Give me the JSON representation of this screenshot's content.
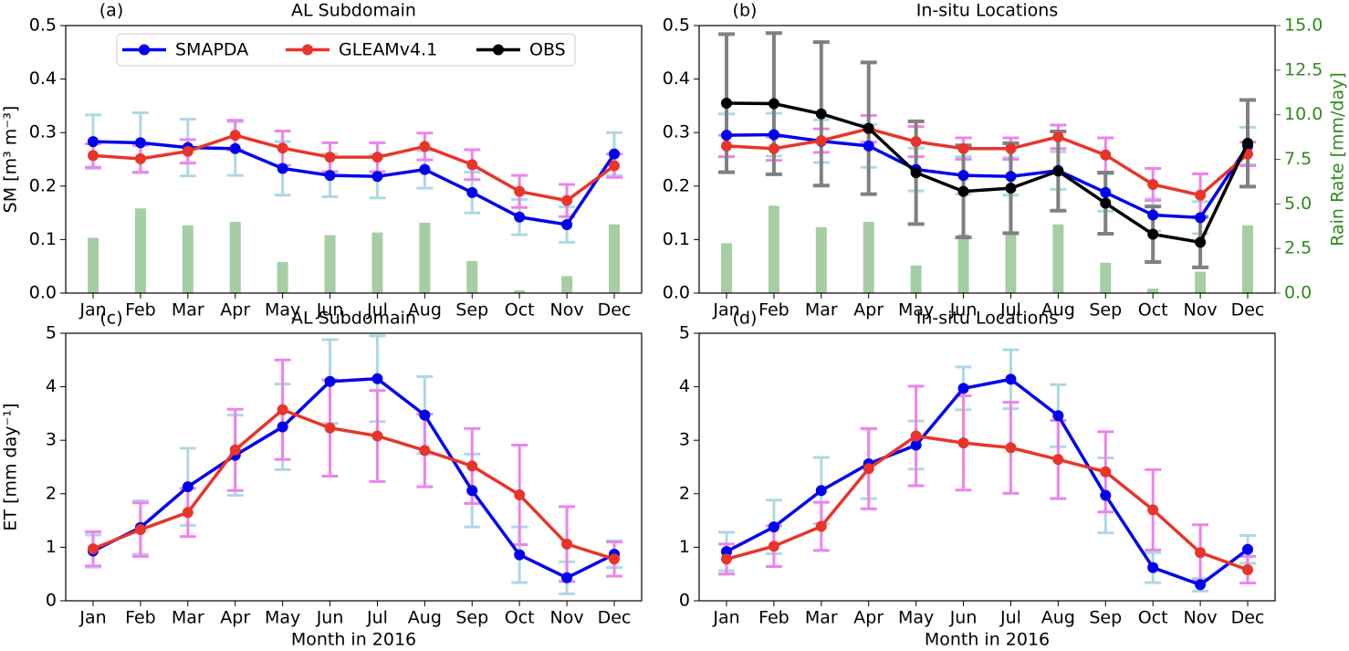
{
  "chart_data": [
    {
      "type": "line",
      "panel_label": "(a)",
      "title": "AL Subdomain",
      "ylabel": "SM [m³ m⁻³]",
      "categories": [
        "Jan",
        "Feb",
        "Mar",
        "Apr",
        "May",
        "Jun",
        "Jul",
        "Aug",
        "Sep",
        "Oct",
        "Nov",
        "Dec"
      ],
      "ylim": [
        0,
        0.5
      ],
      "yticks": [
        {
          "value": 0,
          "label": "0.0"
        },
        0.1,
        0.2,
        0.3,
        0.4,
        0.5
      ],
      "y2lim": [
        0,
        15
      ],
      "legend_entries": [
        {
          "name": "SMAPDA",
          "color": "#0000ee"
        },
        {
          "name": "GLEAMv4.1",
          "color": "#e8352a"
        },
        {
          "name": "OBS",
          "color": "#000000"
        }
      ],
      "rain": {
        "color": "#9cc99a",
        "axis": "y2",
        "values": [
          3.1,
          4.75,
          3.8,
          4.0,
          1.75,
          3.25,
          3.4,
          3.95,
          1.8,
          0.15,
          0.95,
          3.85
        ]
      },
      "series": [
        {
          "color": "#0000ee",
          "error_color": "#add8e6",
          "values": [
            0.283,
            0.281,
            0.272,
            0.27,
            0.233,
            0.22,
            0.218,
            0.231,
            0.188,
            0.142,
            0.128,
            0.26
          ],
          "errors": [
            0.05,
            0.056,
            0.053,
            0.05,
            0.05,
            0.04,
            0.04,
            0.035,
            0.038,
            0.033,
            0.033,
            0.04
          ]
        },
        {
          "color": "#e8352a",
          "error_color": "#ee82ee",
          "values": [
            0.257,
            0.251,
            0.265,
            0.295,
            0.271,
            0.254,
            0.254,
            0.274,
            0.24,
            0.19,
            0.173,
            0.238
          ],
          "errors": [
            0.022,
            0.025,
            0.022,
            0.028,
            0.032,
            0.027,
            0.027,
            0.025,
            0.028,
            0.03,
            0.03,
            0.022
          ]
        }
      ]
    },
    {
      "type": "line",
      "panel_label": "(b)",
      "title": "In-situ Locations",
      "y2label": "Rain Rate [mm/day]",
      "y2color": "#2e8a1a",
      "categories": [
        "Jan",
        "Feb",
        "Mar",
        "Apr",
        "May",
        "Jun",
        "Jul",
        "Aug",
        "Sep",
        "Oct",
        "Nov",
        "Dec"
      ],
      "ylim": [
        0,
        0.5
      ],
      "yticks": [
        {
          "value": 0,
          "label": "0.0"
        },
        0.1,
        0.2,
        0.3,
        0.4,
        0.5
      ],
      "y2lim": [
        0,
        15
      ],
      "y2ticks": [
        {
          "value": 0,
          "label": "0.0"
        },
        2.5,
        {
          "value": 5,
          "label": "5.0"
        },
        7.5,
        {
          "value": 10,
          "label": "10.0"
        },
        12.5,
        {
          "value": 15,
          "label": "15.0"
        }
      ],
      "rain": {
        "color": "#9cc99a",
        "axis": "y2",
        "values": [
          2.8,
          4.9,
          3.7,
          4.0,
          1.55,
          3.3,
          3.35,
          3.85,
          1.7,
          0.25,
          1.2,
          3.8
        ]
      },
      "series": [
        {
          "color": "#0000ee",
          "error_color": "#add8e6",
          "values": [
            0.295,
            0.296,
            0.284,
            0.275,
            0.231,
            0.22,
            0.218,
            0.229,
            0.188,
            0.146,
            0.141,
            0.275
          ],
          "errors": [
            0.04,
            0.04,
            0.04,
            0.04,
            0.04,
            0.035,
            0.035,
            0.035,
            0.035,
            0.03,
            0.03,
            0.035
          ]
        },
        {
          "color": "#e8352a",
          "error_color": "#ee82ee",
          "values": [
            0.275,
            0.27,
            0.285,
            0.307,
            0.283,
            0.27,
            0.27,
            0.292,
            0.258,
            0.203,
            0.183,
            0.26
          ],
          "errors": [
            0.02,
            0.022,
            0.022,
            0.025,
            0.028,
            0.02,
            0.02,
            0.022,
            0.032,
            0.03,
            0.04,
            0.022
          ]
        },
        {
          "color": "#000000",
          "error_color": "#808080",
          "values": [
            0.355,
            0.354,
            0.335,
            0.308,
            0.225,
            0.19,
            0.196,
            0.228,
            0.168,
            0.11,
            0.095,
            0.28
          ],
          "errors": [
            0.129,
            0.132,
            0.134,
            0.123,
            0.096,
            0.086,
            0.084,
            0.074,
            0.057,
            0.052,
            0.047,
            0.081
          ]
        }
      ]
    },
    {
      "type": "line",
      "panel_label": "(c)",
      "title": "AL Subdomain",
      "ylabel": "ET [mm day⁻¹]",
      "xlabel": "Month in 2016",
      "categories": [
        "Jan",
        "Feb",
        "Mar",
        "Apr",
        "May",
        "Jun",
        "Jul",
        "Aug",
        "Sep",
        "Oct",
        "Nov",
        "Dec"
      ],
      "ylim": [
        0,
        5
      ],
      "yticks": [
        0,
        1,
        2,
        3,
        4,
        5
      ],
      "series": [
        {
          "color": "#0000ee",
          "error_color": "#add8e6",
          "values": [
            0.93,
            1.37,
            2.13,
            2.72,
            3.25,
            4.1,
            4.15,
            3.47,
            2.06,
            0.86,
            0.43,
            0.87
          ],
          "errors": [
            0.3,
            0.5,
            0.72,
            0.75,
            0.8,
            0.78,
            0.8,
            0.72,
            0.68,
            0.52,
            0.3,
            0.25
          ]
        },
        {
          "color": "#e8352a",
          "error_color": "#ee82ee",
          "values": [
            0.97,
            1.33,
            1.65,
            2.82,
            3.57,
            3.23,
            3.08,
            2.81,
            2.52,
            1.98,
            1.06,
            0.78
          ],
          "errors": [
            0.32,
            0.5,
            0.45,
            0.76,
            0.93,
            0.9,
            0.85,
            0.68,
            0.7,
            0.93,
            0.7,
            0.32
          ]
        }
      ]
    },
    {
      "type": "line",
      "panel_label": "(d)",
      "title": "In-situ Locations",
      "xlabel": "Month in 2016",
      "categories": [
        "Jan",
        "Feb",
        "Mar",
        "Apr",
        "May",
        "Jun",
        "Jul",
        "Aug",
        "Sep",
        "Oct",
        "Nov",
        "Dec"
      ],
      "ylim": [
        0,
        5
      ],
      "yticks": [
        0,
        1,
        2,
        3,
        4,
        5
      ],
      "series": [
        {
          "color": "#0000ee",
          "error_color": "#add8e6",
          "values": [
            0.92,
            1.38,
            2.06,
            2.56,
            2.91,
            3.97,
            4.14,
            3.46,
            1.97,
            0.62,
            0.3,
            0.96
          ],
          "errors": [
            0.36,
            0.5,
            0.62,
            0.65,
            0.45,
            0.4,
            0.55,
            0.58,
            0.7,
            0.28,
            0.12,
            0.26
          ]
        },
        {
          "color": "#e8352a",
          "error_color": "#ee82ee",
          "values": [
            0.78,
            1.02,
            1.39,
            2.47,
            3.08,
            2.95,
            2.86,
            2.64,
            2.41,
            1.7,
            0.9,
            0.58
          ],
          "errors": [
            0.28,
            0.38,
            0.45,
            0.75,
            0.93,
            0.88,
            0.85,
            0.73,
            0.75,
            0.75,
            0.52,
            0.25
          ]
        }
      ]
    }
  ]
}
